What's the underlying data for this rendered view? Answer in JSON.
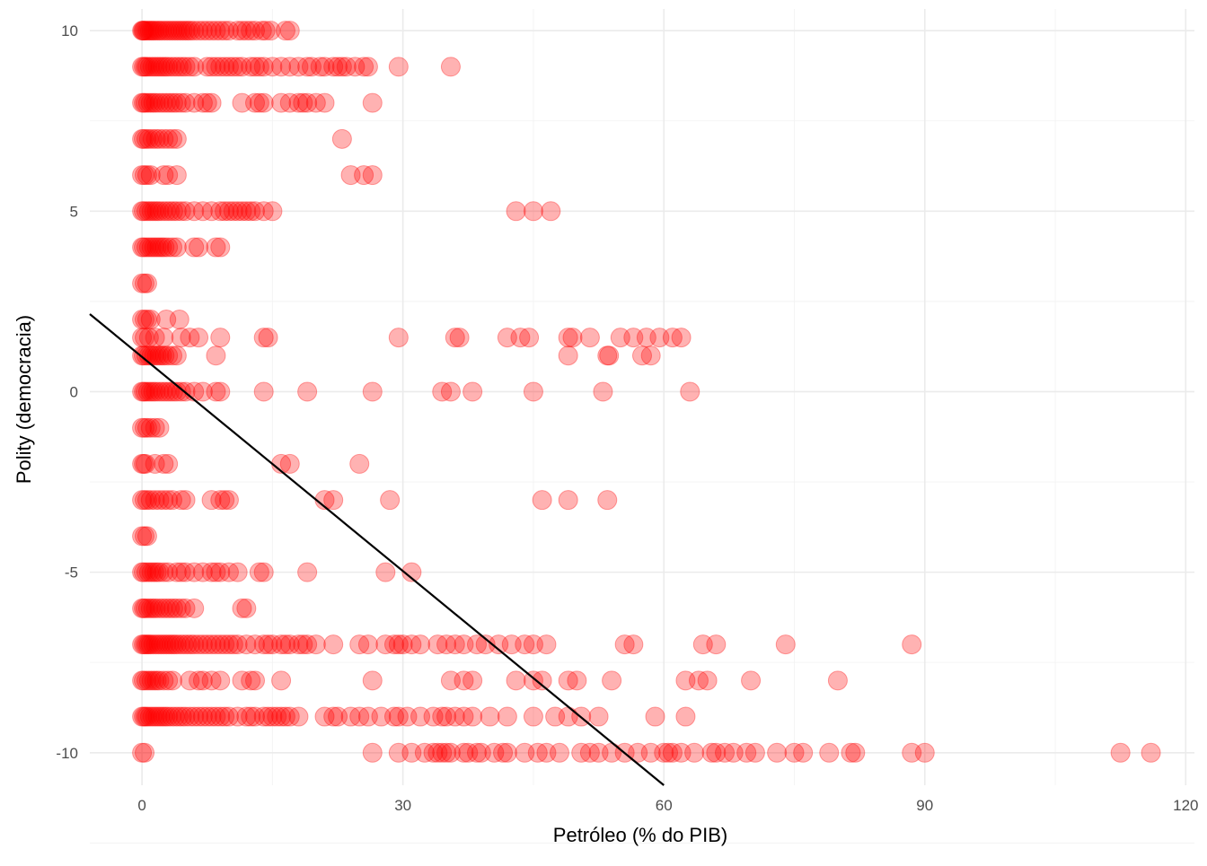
{
  "chart_data": {
    "type": "scatter",
    "title": "",
    "xlabel": "Petróleo (% do PIB)",
    "ylabel": "Polity (democracia)",
    "xlim": [
      -6,
      121
    ],
    "ylim": [
      -10.9,
      10.6
    ],
    "x_ticks": [
      0,
      30,
      60,
      90,
      120
    ],
    "y_ticks": [
      -10,
      -5,
      0,
      5,
      10
    ],
    "x_tick_labels": [
      "0",
      "30",
      "60",
      "90",
      "120"
    ],
    "y_tick_labels": [
      "-10",
      "-5",
      "0",
      "5",
      "10"
    ],
    "grid": true,
    "point_color": "#ff0000",
    "point_opacity": 0.3,
    "line_color": "#000000",
    "regression_line": {
      "x": [
        -6,
        60
      ],
      "y": [
        2.15,
        -10.9
      ]
    },
    "series": [
      {
        "y": 10,
        "x": [
          0,
          0.1,
          0.2,
          0.3,
          0.5,
          0.7,
          0.9,
          1.1,
          1.3,
          1.5,
          1.8,
          2.0,
          2.3,
          2.6,
          2.9,
          3.2,
          3.5,
          3.8,
          4.1,
          4.4,
          4.7,
          5.0,
          5.3,
          5.6,
          6.0,
          6.5,
          7.0,
          7.5,
          8.0,
          8.5,
          9.0,
          9.5,
          10.0,
          11.0,
          11.5,
          12.0,
          12.5,
          13.0,
          13.8,
          14.2,
          14.8,
          16.5,
          17.0
        ]
      },
      {
        "y": 9,
        "x": [
          0,
          0.2,
          0.4,
          0.6,
          0.9,
          1.2,
          1.5,
          1.8,
          2.1,
          2.4,
          2.7,
          3.0,
          3.4,
          3.8,
          4.2,
          4.6,
          5.0,
          5.5,
          6.0,
          7.5,
          8.0,
          8.5,
          9.0,
          9.5,
          10.0,
          10.5,
          11.0,
          11.5,
          12.5,
          13.0,
          13.5,
          14.0,
          15.0,
          16.0,
          17.0,
          18.0,
          19.0,
          19.5,
          20.5,
          21.0,
          22.0,
          22.5,
          23.0,
          23.5,
          24.5,
          25.5,
          26.0,
          29.5,
          35.5
        ]
      },
      {
        "y": 8,
        "x": [
          0,
          0.2,
          0.4,
          0.7,
          1.0,
          1.3,
          1.6,
          2.0,
          2.4,
          2.8,
          3.2,
          3.6,
          4.0,
          4.5,
          5.0,
          6.0,
          7.0,
          7.5,
          8.0,
          11.5,
          13.0,
          13.5,
          14.0,
          16.0,
          17.0,
          18.0,
          18.5,
          19.0,
          20.0,
          21.0,
          26.5
        ]
      },
      {
        "y": 7,
        "x": [
          0,
          0.2,
          0.5,
          0.8,
          1.2,
          1.6,
          2.0,
          2.5,
          3.0,
          3.5,
          4.0,
          23.0
        ]
      },
      {
        "y": 6,
        "x": [
          0,
          0.3,
          0.6,
          1.0,
          2.5,
          3.0,
          4.0,
          24.0,
          25.5,
          26.5
        ]
      },
      {
        "y": 5,
        "x": [
          0,
          0.2,
          0.5,
          0.8,
          1.1,
          1.4,
          1.7,
          2.0,
          2.4,
          2.8,
          3.2,
          3.6,
          4.0,
          4.5,
          5.0,
          6.0,
          7.0,
          8.0,
          9.0,
          9.5,
          10.0,
          10.5,
          11.0,
          11.5,
          12.0,
          12.5,
          13.0,
          14.0,
          15.0,
          43.0,
          45.0,
          47.0
        ]
      },
      {
        "y": 4,
        "x": [
          0,
          0.2,
          0.5,
          0.8,
          1.1,
          1.4,
          1.7,
          2.0,
          2.3,
          2.6,
          3.0,
          3.5,
          4.0,
          6.0,
          6.5,
          8.5,
          9.0
        ]
      },
      {
        "y": 3,
        "x": [
          0,
          0.3,
          0.6
        ]
      },
      {
        "y": 2,
        "x": [
          0,
          0.3,
          0.6,
          1.0,
          2.8,
          4.3
        ]
      },
      {
        "y": 1.5,
        "x": [
          0,
          0.3,
          0.8,
          1.5,
          2.5,
          4.5,
          5.5,
          6.5,
          9.0,
          14.0,
          14.5,
          29.5,
          36.0,
          36.5,
          42.0,
          43.5,
          44.5,
          49.0,
          49.5,
          51.5,
          55.0,
          56.5,
          58.0,
          59.5,
          61.0,
          62.0
        ]
      },
      {
        "y": 1,
        "x": [
          0,
          0.2,
          0.5,
          0.8,
          1.1,
          1.4,
          1.7,
          2.0,
          2.3,
          2.6,
          3.0,
          3.5,
          4.0,
          8.5,
          49.0,
          53.5,
          53.7,
          57.5,
          58.5
        ]
      },
      {
        "y": 0,
        "x": [
          0,
          0.2,
          0.4,
          0.7,
          1.0,
          1.3,
          1.6,
          2.0,
          2.4,
          2.8,
          3.2,
          3.6,
          4.0,
          4.5,
          5.0,
          6.0,
          7.0,
          8.5,
          9.0,
          14.0,
          19.0,
          26.5,
          34.5,
          35.5,
          38.0,
          45.0,
          53.0,
          63.0
        ]
      },
      {
        "y": -1,
        "x": [
          0,
          0.3,
          0.6,
          1.0,
          1.5,
          2.0
        ]
      },
      {
        "y": -2,
        "x": [
          0,
          0.2,
          0.4,
          1.5,
          2.5,
          3.0,
          16.0,
          17.0,
          25.0
        ]
      },
      {
        "y": -3,
        "x": [
          0,
          0.3,
          0.6,
          1.0,
          1.5,
          2.0,
          2.5,
          3.0,
          3.5,
          4.5,
          5.0,
          8.0,
          9.0,
          9.5,
          10.0,
          21.0,
          22.0,
          28.5,
          46.0,
          49.0,
          53.5
        ]
      },
      {
        "y": -4,
        "x": [
          0,
          0.3,
          0.6
        ]
      },
      {
        "y": -5,
        "x": [
          0,
          0.2,
          0.5,
          0.8,
          1.1,
          1.4,
          1.7,
          2.0,
          2.5,
          3.0,
          4.0,
          4.5,
          5.0,
          6.0,
          7.0,
          8.0,
          8.5,
          9.0,
          10.0,
          11.0,
          13.5,
          14.0,
          19.0,
          28.0,
          31.0
        ]
      },
      {
        "y": -6,
        "x": [
          0,
          0.2,
          0.4,
          0.7,
          1.0,
          1.3,
          1.6,
          2.0,
          2.4,
          2.8,
          3.2,
          3.6,
          4.0,
          4.5,
          5.0,
          6.0,
          11.5,
          12.0
        ]
      },
      {
        "y": -7,
        "x": [
          0,
          0.2,
          0.4,
          0.6,
          0.8,
          1.0,
          1.3,
          1.6,
          1.9,
          2.2,
          2.5,
          2.8,
          3.1,
          3.4,
          3.7,
          4.0,
          4.4,
          4.8,
          5.2,
          5.6,
          6.0,
          6.5,
          7.0,
          7.5,
          8.0,
          8.5,
          9.0,
          9.5,
          10.0,
          10.5,
          11.0,
          12.0,
          13.0,
          14.0,
          14.5,
          15.0,
          16.0,
          16.5,
          17.0,
          18.0,
          18.5,
          19.0,
          20.0,
          22.0,
          25.0,
          26.0,
          28.0,
          29.0,
          29.5,
          30.0,
          31.0,
          32.0,
          34.0,
          35.0,
          36.0,
          37.0,
          38.5,
          39.5,
          41.0,
          42.5,
          44.0,
          45.0,
          46.5,
          55.5,
          56.5,
          64.5,
          66.0,
          74.0,
          88.5
        ]
      },
      {
        "y": -8,
        "x": [
          0,
          0.2,
          0.5,
          0.8,
          1.1,
          1.4,
          1.7,
          2.0,
          2.5,
          3.0,
          3.5,
          5.5,
          6.5,
          7.0,
          8.0,
          9.0,
          11.5,
          12.5,
          13.0,
          16.0,
          26.5,
          35.5,
          37.0,
          38.0,
          43.0,
          45.0,
          46.0,
          49.0,
          50.0,
          54.0,
          62.5,
          64.0,
          65.0,
          70.0,
          80.0
        ]
      },
      {
        "y": -9,
        "x": [
          0,
          0.2,
          0.4,
          0.6,
          0.9,
          1.2,
          1.5,
          1.8,
          2.1,
          2.4,
          2.7,
          3.0,
          3.4,
          3.8,
          4.2,
          4.6,
          5.0,
          5.5,
          6.0,
          6.5,
          7.0,
          7.5,
          8.0,
          8.5,
          9.0,
          9.5,
          10.0,
          11.0,
          12.0,
          12.5,
          13.0,
          14.0,
          14.5,
          15.0,
          15.5,
          16.0,
          16.5,
          17.0,
          18.0,
          21.0,
          22.0,
          22.5,
          24.0,
          25.0,
          26.0,
          27.5,
          29.0,
          29.5,
          30.5,
          32.0,
          33.5,
          34.5,
          35.0,
          36.0,
          37.0,
          38.0,
          40.0,
          42.0,
          45.0,
          47.5,
          49.0,
          50.5,
          52.5,
          59.0,
          62.5
        ]
      },
      {
        "y": -10,
        "x": [
          0,
          0.3,
          26.5,
          29.5,
          31.0,
          32.5,
          33.5,
          34.0,
          34.5,
          35.0,
          35.5,
          37.0,
          37.5,
          38.5,
          39.0,
          40.5,
          41.5,
          42.0,
          44.0,
          45.5,
          46.5,
          48.0,
          50.5,
          51.5,
          52.5,
          54.0,
          55.5,
          57.0,
          58.5,
          60.0,
          60.5,
          61.0,
          62.0,
          63.5,
          65.5,
          66.0,
          67.0,
          68.0,
          69.5,
          70.5,
          73.0,
          75.0,
          76.0,
          79.0,
          81.5,
          82.0,
          88.5,
          90.0,
          112.5,
          116.0
        ]
      }
    ]
  }
}
